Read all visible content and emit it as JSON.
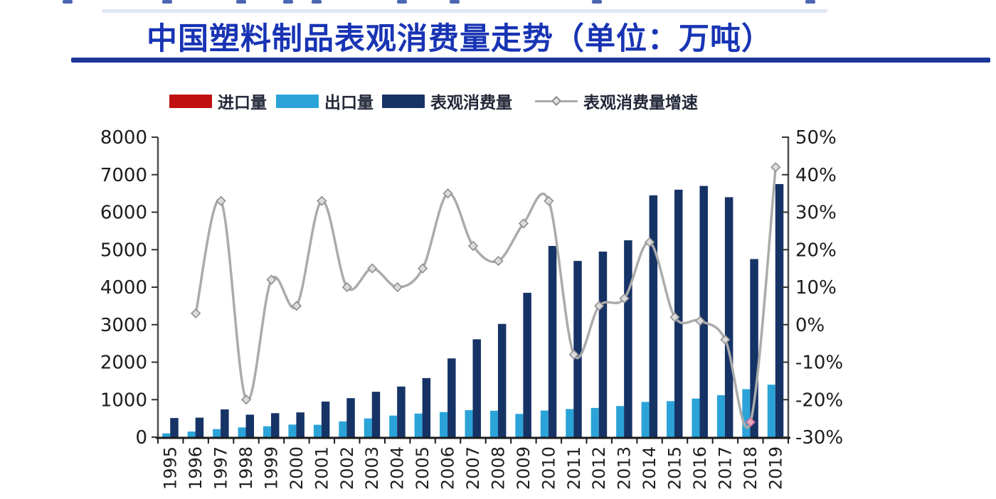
{
  "header": {
    "title": "中国塑料制品表观消费量走势（单位：万吨）",
    "title_color": "#1834b4",
    "underline_color": "#1a3699"
  },
  "legend": {
    "items": [
      {
        "label": "进口量",
        "color": "#c01010",
        "type": "box"
      },
      {
        "label": "出口量",
        "color": "#2ba3d9",
        "type": "box"
      },
      {
        "label": "表观消费量",
        "color": "#163366",
        "type": "box"
      },
      {
        "label": "表观消费量增速",
        "color": "#ababab",
        "type": "line"
      }
    ]
  },
  "artifacts": {
    "top_dash_color": "#2b4ba6",
    "top_smear_color": "#c5d4ee"
  },
  "chart_data": {
    "type": "combo",
    "title": "中国塑料制品表观消费量走势（单位：万吨）",
    "xlabel": "",
    "ylabel_left": "",
    "ylabel_right": "",
    "grid": false,
    "legend_position": "top",
    "categories": [
      "1995",
      "1996",
      "1997",
      "1998",
      "1999",
      "2000",
      "2001",
      "2002",
      "2003",
      "2004",
      "2005",
      "2006",
      "2007",
      "2008",
      "2009",
      "2010",
      "2011",
      "2012",
      "2013",
      "2014",
      "2015",
      "2016",
      "2017",
      "2018",
      "2019"
    ],
    "series": [
      {
        "name": "进口量",
        "type": "bar",
        "axis": "left",
        "color": "#c01010",
        "values": null,
        "note": "legend entry present but bars too small to be visible in the image"
      },
      {
        "name": "出口量",
        "type": "bar",
        "axis": "left",
        "color": "#2ba3d9",
        "values": [
          100,
          150,
          215,
          260,
          290,
          335,
          330,
          420,
          500,
          575,
          630,
          670,
          720,
          705,
          620,
          710,
          750,
          780,
          830,
          940,
          960,
          1030,
          1120,
          1280,
          1400
        ]
      },
      {
        "name": "表观消费量",
        "type": "bar",
        "axis": "left",
        "color": "#163366",
        "values": [
          510,
          520,
          740,
          600,
          640,
          660,
          950,
          1040,
          1210,
          1350,
          1575,
          2100,
          2610,
          3020,
          3850,
          5100,
          4700,
          4950,
          5250,
          6450,
          6600,
          6700,
          6400,
          4750,
          6750
        ]
      },
      {
        "name": "表观消费量增速",
        "type": "line",
        "axis": "right",
        "unit": "%",
        "color": "#ababab",
        "marker": "diamond",
        "marker_fill": "#dcdcdc",
        "marker_stroke": "#8f8f8f",
        "highlight_marker": {
          "year": "2018",
          "fill": "#e8a7bd",
          "stroke": "#c96f92"
        },
        "values": [
          null,
          3,
          33,
          -20,
          12,
          5,
          33,
          10,
          15,
          10,
          15,
          35,
          21,
          17,
          27,
          33,
          -8,
          5,
          7,
          22,
          2,
          1,
          -4,
          -26,
          42
        ]
      }
    ],
    "left_axis": {
      "min": 0,
      "max": 8000,
      "step": 1000,
      "ticks": [
        "0",
        "1000",
        "2000",
        "3000",
        "4000",
        "5000",
        "6000",
        "7000",
        "8000"
      ]
    },
    "right_axis": {
      "min": -30,
      "max": 50,
      "step": 10,
      "ticks": [
        "50%",
        "40%",
        "30%",
        "20%",
        "10%",
        "0%",
        "-10%",
        "-20%",
        "-30%"
      ]
    }
  }
}
